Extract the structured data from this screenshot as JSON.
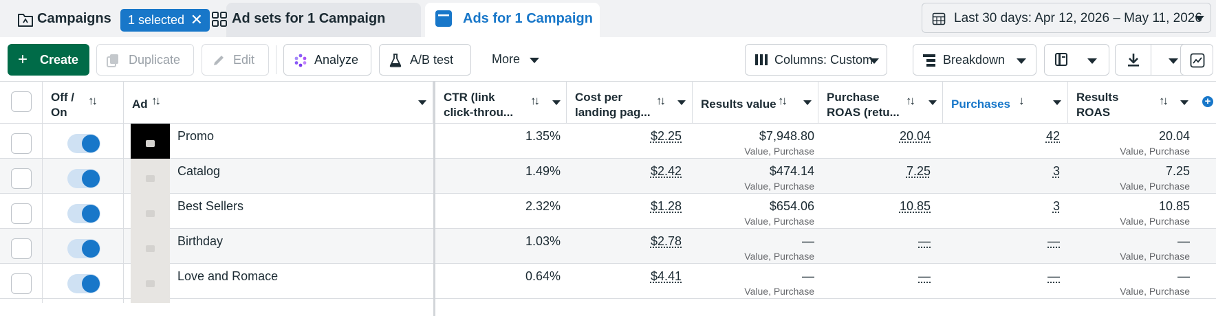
{
  "tabs": {
    "campaigns": {
      "label": "Campaigns",
      "badge": "1 selected",
      "badge_close": "✕"
    },
    "adsets": {
      "label": "Ad sets for 1 Campaign"
    },
    "ads": {
      "label": "Ads for 1 Campaign"
    }
  },
  "date_range": {
    "label": "Last 30 days: Apr 12, 2026 – May 11, 2026"
  },
  "toolbar": {
    "create": "Create",
    "duplicate": "Duplicate",
    "edit": "Edit",
    "analyze": "Analyze",
    "ab_test": "A/B test",
    "more": "More",
    "columns": "Columns: Custom",
    "breakdown": "Breakdown"
  },
  "columns": {
    "off_on": [
      "Off /",
      "On"
    ],
    "ad": "Ad",
    "ctr": [
      "CTR (link",
      "click-throu..."
    ],
    "cost_landing": [
      "Cost per",
      "landing pag..."
    ],
    "results_value": "Results value",
    "purchase_roas": [
      "Purchase",
      "ROAS (retu..."
    ],
    "purchases": "Purchases",
    "results_roas": [
      "Results",
      "ROAS"
    ]
  },
  "rows": [
    {
      "name": "Promo",
      "ctr": "1.35%",
      "cost": "$2.25",
      "results_value": "$7,948.80",
      "results_value_sub": "Value, Purchase",
      "purchase_roas": "20.04",
      "purchases": "42",
      "results_roas": "20.04",
      "results_roas_sub": "Value, Purchase"
    },
    {
      "name": "Catalog",
      "ctr": "1.49%",
      "cost": "$2.42",
      "results_value": "$474.14",
      "results_value_sub": "Value, Purchase",
      "purchase_roas": "7.25",
      "purchases": "3",
      "results_roas": "7.25",
      "results_roas_sub": "Value, Purchase"
    },
    {
      "name": "Best Sellers",
      "ctr": "2.32%",
      "cost": "$1.28",
      "results_value": "$654.06",
      "results_value_sub": "Value, Purchase",
      "purchase_roas": "10.85",
      "purchases": "3",
      "results_roas": "10.85",
      "results_roas_sub": "Value, Purchase"
    },
    {
      "name": "Birthday",
      "ctr": "1.03%",
      "cost": "$2.78",
      "results_value": "—",
      "results_value_sub": "Value, Purchase",
      "purchase_roas": "—",
      "purchases": "—",
      "results_roas": "—",
      "results_roas_sub": "Value, Purchase"
    },
    {
      "name": "Love and Romace",
      "ctr": "0.64%",
      "cost": "$4.41",
      "results_value": "—",
      "results_value_sub": "Value, Purchase",
      "purchase_roas": "—",
      "purchases": "—",
      "results_roas": "—",
      "results_roas_sub": "Value, Purchase"
    }
  ],
  "colors": {
    "accent": "#1877c9",
    "create": "#006b48",
    "toggle_track": "#cfe1f3"
  }
}
